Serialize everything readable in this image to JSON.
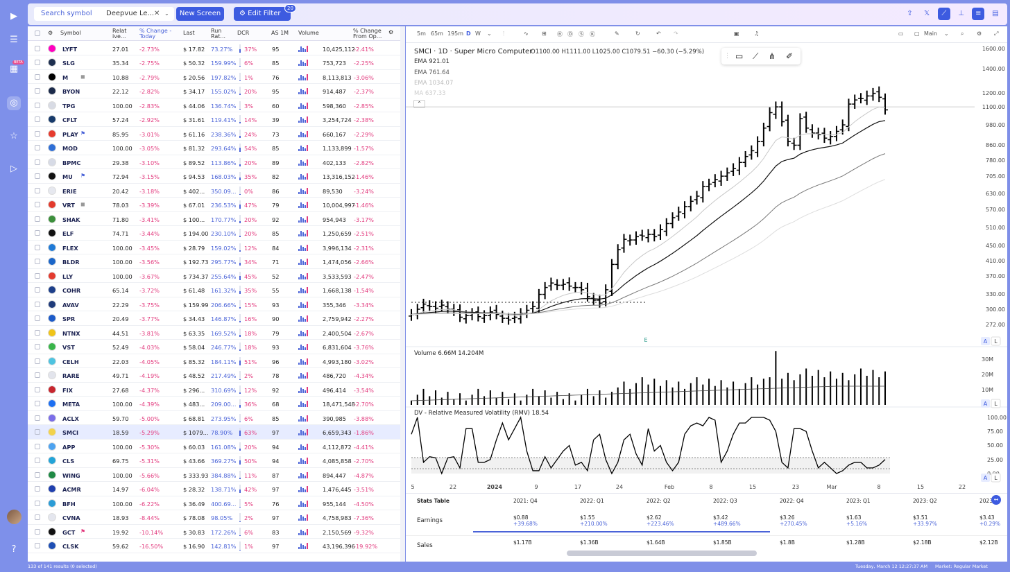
{
  "top": {
    "search": "Search symbol",
    "screen": "Deepvue Le...",
    "new_screen": "New Screen",
    "edit_filter": "Edit Filter",
    "filter_count": "20",
    "beta": "BETA"
  },
  "columns": [
    "Symbol",
    "Relat ive...",
    "% Change - Today",
    "Last",
    "Run Rat...",
    "DCR",
    "AS 1M",
    "Volume",
    "% Change From Op..."
  ],
  "rows": [
    {
      "sym": "LYFT",
      "rel": "27.01",
      "chg": "-2.73%",
      "last": "$ 17.82",
      "run": "73.27%",
      "dcr": "37%",
      "as": "95",
      "vol": "10,425,112",
      "fo": "-2.41%",
      "color": "#ff00bf",
      "dcrv": 37
    },
    {
      "sym": "SLG",
      "rel": "35.34",
      "chg": "-2.75%",
      "last": "$ 50.32",
      "run": "159.99%",
      "dcr": "6%",
      "as": "85",
      "vol": "753,723",
      "fo": "-2.25%",
      "color": "#1d2f4f",
      "dcrv": 6
    },
    {
      "sym": "M",
      "rel": "10.88",
      "chg": "-2.79%",
      "last": "$ 20.56",
      "run": "197.82%",
      "dcr": "1%",
      "as": "76",
      "vol": "8,113,813",
      "fo": "-3.06%",
      "color": "#000000",
      "dcrv": 1,
      "flag": "◼"
    },
    {
      "sym": "BYON",
      "rel": "22.12",
      "chg": "-2.82%",
      "last": "$ 34.17",
      "run": "155.02%",
      "dcr": "20%",
      "as": "95",
      "vol": "914,487",
      "fo": "-2.37%",
      "color": "#1b2a4a",
      "dcrv": 20
    },
    {
      "sym": "TPG",
      "rel": "100.00",
      "chg": "-2.83%",
      "last": "$ 44.06",
      "run": "136.74%",
      "dcr": "3%",
      "as": "60",
      "vol": "598,360",
      "fo": "-2.85%",
      "color": "#d8dbe4",
      "dcrv": 3
    },
    {
      "sym": "CFLT",
      "rel": "57.24",
      "chg": "-2.92%",
      "last": "$ 31.61",
      "run": "119.41%",
      "dcr": "14%",
      "as": "39",
      "vol": "3,254,724",
      "fo": "-2.38%",
      "color": "#173a6a",
      "dcrv": 14
    },
    {
      "sym": "PLAY",
      "rel": "85.95",
      "chg": "-3.01%",
      "last": "$ 61.16",
      "run": "238.36%",
      "dcr": "24%",
      "as": "73",
      "vol": "660,167",
      "fo": "-2.29%",
      "color": "#e63b2e",
      "dcrv": 24,
      "flag": "⚑"
    },
    {
      "sym": "MOD",
      "rel": "100.00",
      "chg": "-3.05%",
      "last": "$ 81.32",
      "run": "293.64%",
      "dcr": "54%",
      "as": "85",
      "vol": "1,133,899",
      "fo": "-1.57%",
      "color": "#2f6fd6",
      "dcrv": 54
    },
    {
      "sym": "BPMC",
      "rel": "29.38",
      "chg": "-3.10%",
      "last": "$ 89.52",
      "run": "113.86%",
      "dcr": "20%",
      "as": "89",
      "vol": "402,133",
      "fo": "-2.82%",
      "color": "#d7dbe6",
      "dcrv": 20
    },
    {
      "sym": "MU",
      "rel": "72.94",
      "chg": "-3.15%",
      "last": "$ 94.53",
      "run": "168.03%",
      "dcr": "35%",
      "as": "82",
      "vol": "13,316,152",
      "fo": "-1.46%",
      "color": "#111111",
      "dcrv": 35,
      "flag": "⚑"
    },
    {
      "sym": "ERIE",
      "rel": "20.42",
      "chg": "-3.18%",
      "last": "$ 402...",
      "run": "350.09...",
      "dcr": "0%",
      "as": "86",
      "vol": "89,530",
      "fo": "-3.24%",
      "color": "#e6e8ef",
      "dcrv": 0
    },
    {
      "sym": "VRT",
      "rel": "78.03",
      "chg": "-3.39%",
      "last": "$ 67.01",
      "run": "236.53%",
      "dcr": "47%",
      "as": "79",
      "vol": "10,004,997",
      "fo": "-1.46%",
      "color": "#e23a2c",
      "dcrv": 47,
      "flag": "◼"
    },
    {
      "sym": "SHAK",
      "rel": "71.80",
      "chg": "-3.41%",
      "last": "$ 100...",
      "run": "170.77%",
      "dcr": "20%",
      "as": "92",
      "vol": "954,943",
      "fo": "-3.17%",
      "color": "#3c8f3c",
      "dcrv": 20
    },
    {
      "sym": "ELF",
      "rel": "74.71",
      "chg": "-3.44%",
      "last": "$ 194.00",
      "run": "230.10%",
      "dcr": "20%",
      "as": "85",
      "vol": "1,250,659",
      "fo": "-2.51%",
      "color": "#111111",
      "dcrv": 20
    },
    {
      "sym": "FLEX",
      "rel": "100.00",
      "chg": "-3.45%",
      "last": "$ 28.79",
      "run": "159.02%",
      "dcr": "12%",
      "as": "84",
      "vol": "3,996,134",
      "fo": "-2.31%",
      "color": "#1f7ad6",
      "dcrv": 12
    },
    {
      "sym": "BLDR",
      "rel": "100.00",
      "chg": "-3.56%",
      "last": "$ 192.73",
      "run": "295.77%",
      "dcr": "34%",
      "as": "71",
      "vol": "1,474,056",
      "fo": "-2.66%",
      "color": "#1b66c9",
      "dcrv": 34
    },
    {
      "sym": "LLY",
      "rel": "100.00",
      "chg": "-3.67%",
      "last": "$ 734.37",
      "run": "255.64%",
      "dcr": "45%",
      "as": "52",
      "vol": "3,533,593",
      "fo": "-2.47%",
      "color": "#e33b2f",
      "dcrv": 45
    },
    {
      "sym": "COHR",
      "rel": "65.14",
      "chg": "-3.72%",
      "last": "$ 61.48",
      "run": "161.32%",
      "dcr": "35%",
      "as": "55",
      "vol": "1,668,138",
      "fo": "-1.54%",
      "color": "#1d3f8a",
      "dcrv": 35
    },
    {
      "sym": "AVAV",
      "rel": "22.29",
      "chg": "-3.75%",
      "last": "$ 159.99",
      "run": "206.66%",
      "dcr": "15%",
      "as": "93",
      "vol": "355,346",
      "fo": "-3.34%",
      "color": "#1f3b7a",
      "dcrv": 15
    },
    {
      "sym": "SPR",
      "rel": "20.49",
      "chg": "-3.77%",
      "last": "$ 34.43",
      "run": "146.87%",
      "dcr": "16%",
      "as": "90",
      "vol": "2,759,942",
      "fo": "-2.27%",
      "color": "#1c5bc9",
      "dcrv": 16
    },
    {
      "sym": "NTNX",
      "rel": "44.51",
      "chg": "-3.81%",
      "last": "$ 63.35",
      "run": "169.52%",
      "dcr": "18%",
      "as": "79",
      "vol": "2,400,504",
      "fo": "-2.67%",
      "color": "#f0c419",
      "dcrv": 18
    },
    {
      "sym": "VST",
      "rel": "52.49",
      "chg": "-4.03%",
      "last": "$ 58.04",
      "run": "246.77%",
      "dcr": "18%",
      "as": "93",
      "vol": "6,831,604",
      "fo": "-3.76%",
      "color": "#39b54a",
      "dcrv": 18
    },
    {
      "sym": "CELH",
      "rel": "22.03",
      "chg": "-4.05%",
      "last": "$ 85.32",
      "run": "184.11%",
      "dcr": "51%",
      "as": "96",
      "vol": "4,993,180",
      "fo": "-3.02%",
      "color": "#4ec3e0",
      "dcrv": 51
    },
    {
      "sym": "RARE",
      "rel": "49.71",
      "chg": "-4.19%",
      "last": "$ 48.52",
      "run": "217.49%",
      "dcr": "2%",
      "as": "78",
      "vol": "486,720",
      "fo": "-4.34%",
      "color": "#e2e4ec",
      "dcrv": 2
    },
    {
      "sym": "FIX",
      "rel": "27.68",
      "chg": "-4.37%",
      "last": "$ 296...",
      "run": "310.69%",
      "dcr": "12%",
      "as": "92",
      "vol": "496,414",
      "fo": "-3.54%",
      "color": "#c7262e",
      "dcrv": 12
    },
    {
      "sym": "META",
      "rel": "100.00",
      "chg": "-4.39%",
      "last": "$ 483...",
      "run": "209.00...",
      "dcr": "36%",
      "as": "68",
      "vol": "18,471,548",
      "fo": "-2.70%",
      "color": "#1d6ff2",
      "dcrv": 36
    },
    {
      "sym": "ACLX",
      "rel": "59.70",
      "chg": "-5.00%",
      "last": "$ 68.81",
      "run": "273.95%",
      "dcr": "6%",
      "as": "85",
      "vol": "390,985",
      "fo": "-3.88%",
      "color": "#7b6ee8",
      "dcrv": 6
    },
    {
      "sym": "SMCI",
      "rel": "18.59",
      "chg": "-5.29%",
      "last": "$ 1079...",
      "run": "78.90%",
      "dcr": "63%",
      "as": "97",
      "vol": "6,659,343",
      "fo": "-1.86%",
      "color": "#f2d24c",
      "dcrv": 63
    },
    {
      "sym": "APP",
      "rel": "100.00",
      "chg": "-5.30%",
      "last": "$ 60.03",
      "run": "161.08%",
      "dcr": "20%",
      "as": "94",
      "vol": "4,112,872",
      "fo": "-4.41%",
      "color": "#4da3f0",
      "dcrv": 20
    },
    {
      "sym": "CLS",
      "rel": "69.75",
      "chg": "-5.31%",
      "last": "$ 43.66",
      "run": "369.27%",
      "dcr": "50%",
      "as": "94",
      "vol": "4,085,858",
      "fo": "-2.70%",
      "color": "#23a4d8",
      "dcrv": 50
    },
    {
      "sym": "WING",
      "rel": "100.00",
      "chg": "-5.66%",
      "last": "$ 333.93",
      "run": "384.88%",
      "dcr": "11%",
      "as": "87",
      "vol": "894,447",
      "fo": "-4.87%",
      "color": "#1f8a45",
      "dcrv": 11
    },
    {
      "sym": "ACMR",
      "rel": "14.97",
      "chg": "-6.04%",
      "last": "$ 28.32",
      "run": "138.71%",
      "dcr": "42%",
      "as": "97",
      "vol": "1,476,445",
      "fo": "-3.51%",
      "color": "#1f3fae",
      "dcrv": 42
    },
    {
      "sym": "BFH",
      "rel": "100.00",
      "chg": "-6.22%",
      "last": "$ 36.49",
      "run": "400.69...",
      "dcr": "5%",
      "as": "76",
      "vol": "955,144",
      "fo": "-4.50%",
      "color": "#2a9cd6",
      "dcrv": 5
    },
    {
      "sym": "CVNA",
      "rel": "18.93",
      "chg": "-8.44%",
      "last": "$ 78.08",
      "run": "98.05%",
      "dcr": "2%",
      "as": "97",
      "vol": "4,758,983",
      "fo": "-7.36%",
      "color": "#e4e6ee",
      "dcrv": 2
    },
    {
      "sym": "GCT",
      "rel": "19.92",
      "chg": "-10.14%",
      "last": "$ 30.83",
      "run": "172.26%",
      "dcr": "6%",
      "as": "83",
      "vol": "2,150,569",
      "fo": "-9.32%",
      "color": "#111111",
      "dcrv": 6,
      "flag": "⚑"
    },
    {
      "sym": "CLSK",
      "rel": "59.62",
      "chg": "-16.50%",
      "last": "$ 16.90",
      "run": "142.81%",
      "dcr": "1%",
      "as": "97",
      "vol": "43,196,396",
      "fo": "-19.92%",
      "color": "#1e4fb4",
      "dcrv": 1
    }
  ],
  "chart": {
    "title": "SMCI · 1D · Super Micro Computer",
    "ohlc": "O1100.00  H1111.00  L1025.00  C1079.51  −60.30 (−5.29%)",
    "ema1": "EMA  921.01",
    "ema2": "EMA  761.64",
    "ema3": "EMA  1034.07",
    "ma": "MA  637.33",
    "timeframes": [
      "5m",
      "65m",
      "195m",
      "D",
      "W"
    ],
    "layout_label": "Main",
    "price_ticks": [
      "1600.00",
      "1400.00",
      "1200.00",
      "1100.00",
      "980.00",
      "860.00",
      "780.00",
      "705.00",
      "630.00",
      "570.00",
      "510.00",
      "450.00",
      "410.00",
      "370.00",
      "330.00",
      "300.00",
      "272.00"
    ],
    "volume_label": "Volume  6.66M  14.204M",
    "volume_ticks": [
      "30M",
      "20M",
      "10M"
    ],
    "rmv_label": "DV - Relative Measured Volatility (RMV)  18.54",
    "rmv_ticks": [
      "100.00",
      "75.00",
      "50.00",
      "25.00",
      "0.00"
    ],
    "x_ticks": [
      "5",
      "22",
      "2024",
      "9",
      "17",
      "24",
      "Feb",
      "8",
      "15",
      "23",
      "Mar",
      "8",
      "15",
      "22"
    ],
    "earnings_marker": "E"
  },
  "stats": {
    "title": "Stats Table",
    "quarters": [
      "2021: Q4",
      "2022: Q1",
      "2022: Q2",
      "2022: Q3",
      "2022: Q4",
      "2023: Q1",
      "2023: Q2",
      "2023"
    ],
    "earnings_label": "Earnings",
    "earnings": [
      [
        "$0.88",
        "+39.68%"
      ],
      [
        "$1.55",
        "+210.00%"
      ],
      [
        "$2.62",
        "+223.46%"
      ],
      [
        "$3.42",
        "+489.66%"
      ],
      [
        "$3.26",
        "+270.45%"
      ],
      [
        "$1.63",
        "+5.16%"
      ],
      [
        "$3.51",
        "+33.97%"
      ],
      [
        "$3.43",
        "+0.29%"
      ]
    ],
    "sales_label": "Sales",
    "sales": [
      "$1.17B",
      "$1.36B",
      "$1.64B",
      "$1.85B",
      "$1.8B",
      "$1.28B",
      "$2.18B",
      "$2.12B"
    ]
  },
  "footer": {
    "count": "133 of 141 results (0 selected)",
    "time": "Tuesday, March 12 12:27:37 AM",
    "market": "Market: Regular Market"
  }
}
